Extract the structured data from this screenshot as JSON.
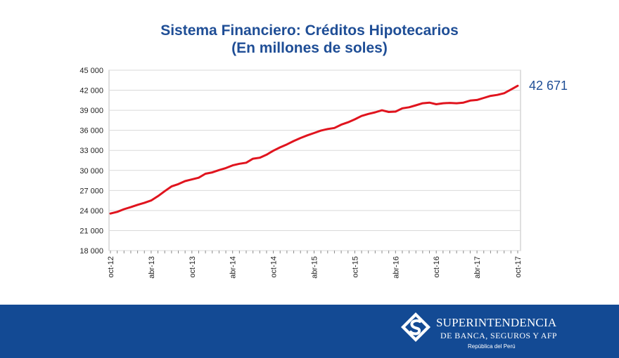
{
  "chart_data": {
    "type": "line",
    "title": "Sistema Financiero: Créditos Hipotecarios",
    "subtitle": "(En millones de soles)",
    "xlabel": "",
    "ylabel": "",
    "ylim": [
      18000,
      45000
    ],
    "yticks": [
      18000,
      21000,
      24000,
      27000,
      30000,
      33000,
      36000,
      39000,
      42000,
      45000
    ],
    "ytick_labels": [
      "18 000",
      "21 000",
      "24 000",
      "27 000",
      "30 000",
      "33 000",
      "36 000",
      "39 000",
      "42 000",
      "45 000"
    ],
    "x": [
      "oct-12",
      "nov-12",
      "dic-12",
      "ene-13",
      "feb-13",
      "mar-13",
      "abr-13",
      "may-13",
      "jun-13",
      "jul-13",
      "ago-13",
      "sep-13",
      "oct-13",
      "nov-13",
      "dic-13",
      "ene-14",
      "feb-14",
      "mar-14",
      "abr-14",
      "may-14",
      "jun-14",
      "jul-14",
      "ago-14",
      "sep-14",
      "oct-14",
      "nov-14",
      "dic-14",
      "ene-15",
      "feb-15",
      "mar-15",
      "abr-15",
      "may-15",
      "jun-15",
      "jul-15",
      "ago-15",
      "sep-15",
      "oct-15",
      "nov-15",
      "dic-15",
      "ene-16",
      "feb-16",
      "mar-16",
      "abr-16",
      "may-16",
      "jun-16",
      "jul-16",
      "ago-16",
      "sep-16",
      "oct-16",
      "nov-16",
      "dic-16",
      "ene-17",
      "feb-17",
      "mar-17",
      "abr-17",
      "may-17",
      "jun-17",
      "jul-17",
      "ago-17",
      "sep-17",
      "oct-17"
    ],
    "xtick_labels": [
      "oct-12",
      "abr-13",
      "oct-13",
      "abr-14",
      "oct-14",
      "abr-15",
      "oct-15",
      "abr-16",
      "oct-16",
      "abr-17",
      "oct-17"
    ],
    "grid": true,
    "series": [
      {
        "color": "#e0141e",
        "values": [
          23550,
          23800,
          24200,
          24500,
          24850,
          25150,
          25500,
          26150,
          26900,
          27600,
          27950,
          28400,
          28650,
          28900,
          29500,
          29700,
          30050,
          30350,
          30750,
          31000,
          31150,
          31750,
          31900,
          32350,
          32950,
          33450,
          33900,
          34400,
          34850,
          35250,
          35600,
          35950,
          36200,
          36350,
          36850,
          37200,
          37650,
          38150,
          38450,
          38700,
          39000,
          38750,
          38800,
          39300,
          39450,
          39750,
          40050,
          40150,
          39900,
          40050,
          40100,
          40050,
          40150,
          40450,
          40550,
          40850,
          41150,
          41300,
          41550,
          42100,
          42671
        ]
      }
    ],
    "last_value_label": "42 671"
  },
  "footer": {
    "org_name": "Superintendencia",
    "org_sub": "de Banca, Seguros y AFP",
    "country": "República del Perú",
    "background": "#134a94"
  }
}
